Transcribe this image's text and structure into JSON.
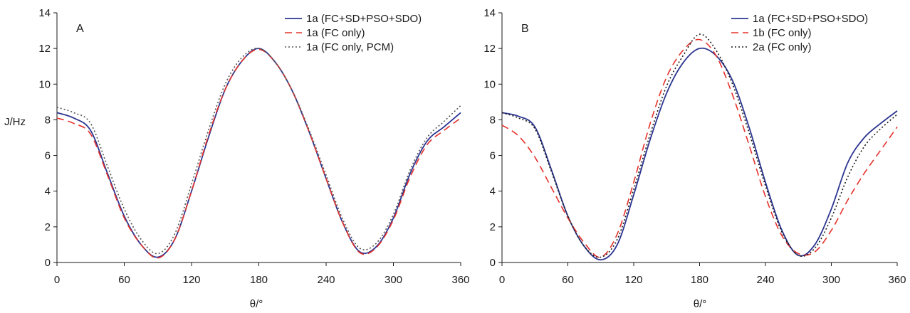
{
  "figure": {
    "ylabel": "J/Hz",
    "xlabel_left": "θ/°",
    "xlabel_right": "θ/°"
  },
  "chart_data": [
    {
      "type": "line",
      "panel": "A",
      "xlabel": "θ/°",
      "ylabel": "J/Hz",
      "xlim": [
        0,
        360
      ],
      "ylim": [
        0,
        14
      ],
      "xticks": [
        0,
        60,
        120,
        180,
        240,
        300,
        360
      ],
      "yticks": [
        0,
        2,
        4,
        6,
        8,
        10,
        12,
        14
      ],
      "grid": false,
      "legend_position": "top-right",
      "x": [
        0,
        15,
        30,
        45,
        60,
        75,
        90,
        105,
        120,
        135,
        150,
        165,
        180,
        195,
        210,
        225,
        240,
        255,
        270,
        285,
        300,
        315,
        330,
        345,
        360
      ],
      "series": [
        {
          "name": "1a (FC+SD+PSO+SDO)",
          "color": "#2c3590",
          "dash": "solid",
          "values": [
            8.4,
            8.1,
            7.4,
            5.0,
            2.6,
            1.0,
            0.3,
            1.3,
            4.0,
            7.0,
            9.7,
            11.3,
            12.0,
            11.2,
            9.6,
            7.3,
            4.7,
            2.2,
            0.6,
            0.9,
            2.5,
            5.0,
            6.8,
            7.6,
            8.4
          ]
        },
        {
          "name": "1a (FC only)",
          "color": "#e4312b",
          "dash": "dashed",
          "values": [
            8.1,
            7.8,
            7.2,
            4.9,
            2.5,
            1.0,
            0.25,
            1.3,
            4.0,
            7.1,
            9.7,
            11.3,
            11.95,
            11.2,
            9.6,
            7.3,
            4.7,
            2.2,
            0.55,
            0.85,
            2.4,
            4.8,
            6.6,
            7.4,
            8.1
          ]
        },
        {
          "name": "1a (FC only, PCM)",
          "color": "#555555",
          "dash": "dotted",
          "values": [
            8.7,
            8.4,
            7.8,
            5.4,
            3.0,
            1.3,
            0.5,
            1.6,
            4.4,
            7.4,
            10.0,
            11.5,
            12.0,
            11.2,
            9.6,
            7.4,
            4.9,
            2.4,
            0.8,
            1.1,
            2.7,
            5.2,
            7.0,
            7.9,
            8.8
          ]
        }
      ]
    },
    {
      "type": "line",
      "panel": "B",
      "xlabel": "θ/°",
      "ylabel": "",
      "xlim": [
        0,
        360
      ],
      "ylim": [
        0,
        14
      ],
      "xticks": [
        0,
        60,
        120,
        180,
        240,
        300,
        360
      ],
      "yticks": [
        0,
        2,
        4,
        6,
        8,
        10,
        12,
        14
      ],
      "grid": false,
      "legend_position": "top-right",
      "x": [
        0,
        15,
        30,
        45,
        60,
        75,
        90,
        105,
        120,
        135,
        150,
        165,
        180,
        195,
        210,
        225,
        240,
        255,
        270,
        285,
        300,
        315,
        330,
        345,
        360
      ],
      "series": [
        {
          "name": "1a (FC+SD+PSO+SDO)",
          "color": "#2c3590",
          "dash": "solid",
          "values": [
            8.4,
            8.2,
            7.6,
            5.2,
            2.6,
            0.9,
            0.15,
            1.0,
            3.8,
            6.9,
            9.5,
            11.2,
            12.0,
            11.6,
            10.2,
            7.6,
            4.5,
            1.8,
            0.4,
            1.0,
            3.0,
            5.6,
            7.0,
            7.8,
            8.5
          ]
        },
        {
          "name": "1b (FC only)",
          "color": "#e4312b",
          "dash": "dashed",
          "values": [
            7.7,
            7.1,
            5.9,
            4.2,
            2.5,
            1.1,
            0.3,
            1.6,
            4.5,
            7.8,
            10.4,
            11.9,
            12.5,
            11.6,
            9.4,
            6.6,
            3.7,
            1.5,
            0.5,
            0.6,
            1.8,
            3.5,
            5.0,
            6.3,
            7.6
          ]
        },
        {
          "name": "2a (FC only)",
          "color": "#1a1a1a",
          "dash": "dotted",
          "values": [
            8.4,
            8.1,
            7.5,
            5.1,
            2.6,
            0.9,
            0.3,
            1.3,
            4.1,
            7.2,
            9.9,
            11.6,
            12.8,
            11.9,
            10.0,
            7.3,
            4.3,
            1.7,
            0.4,
            0.8,
            2.5,
            4.8,
            6.5,
            7.5,
            8.3
          ]
        }
      ]
    }
  ]
}
